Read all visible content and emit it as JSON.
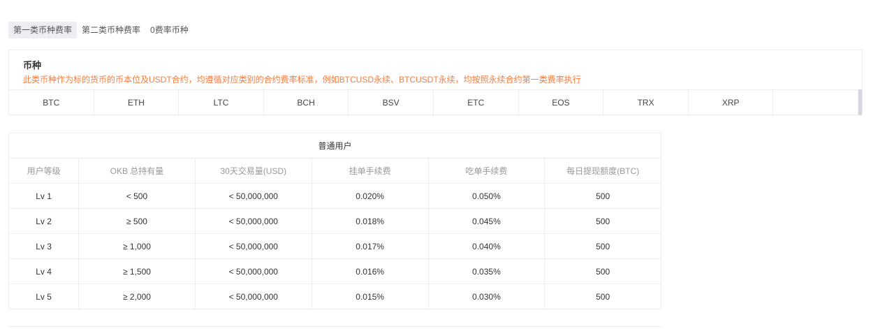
{
  "tabs": [
    {
      "label": "第一类币种费率",
      "active": true
    },
    {
      "label": "第二类币种费率"
    },
    {
      "label": "0费率币种"
    }
  ],
  "coins": {
    "title": "币种",
    "description": "此类币种作为标的货币的币本位及USDT合约，均遵循对应类别的合约费率标准，例如BTCUSD永续、BTCUSDT永续，均按照永续合约第一类费率执行",
    "list": [
      "BTC",
      "ETH",
      "LTC",
      "BCH",
      "BSV",
      "ETC",
      "EOS",
      "TRX",
      "XRP",
      ""
    ]
  },
  "colors": {
    "accent_text": "#f57c3c",
    "active_tab_bg": "#eceef4"
  },
  "table": {
    "title": "普通用户",
    "headers": [
      "用户等级",
      "OKB 总持有量",
      "30天交易量(USD)",
      "挂单手续费",
      "吃单手续费",
      "每日提现额度(BTC)"
    ],
    "rows": [
      [
        "Lv 1",
        "< 500",
        "< 50,000,000",
        "0.020%",
        "0.050%",
        "500"
      ],
      [
        "Lv 2",
        "≥ 500",
        "< 50,000,000",
        "0.018%",
        "0.045%",
        "500"
      ],
      [
        "Lv 3",
        "≥ 1,000",
        "< 50,000,000",
        "0.017%",
        "0.040%",
        "500"
      ],
      [
        "Lv 4",
        "≥ 1,500",
        "< 50,000,000",
        "0.016%",
        "0.035%",
        "500"
      ],
      [
        "Lv 5",
        "≥ 2,000",
        "< 50,000,000",
        "0.015%",
        "0.030%",
        "500"
      ]
    ]
  }
}
